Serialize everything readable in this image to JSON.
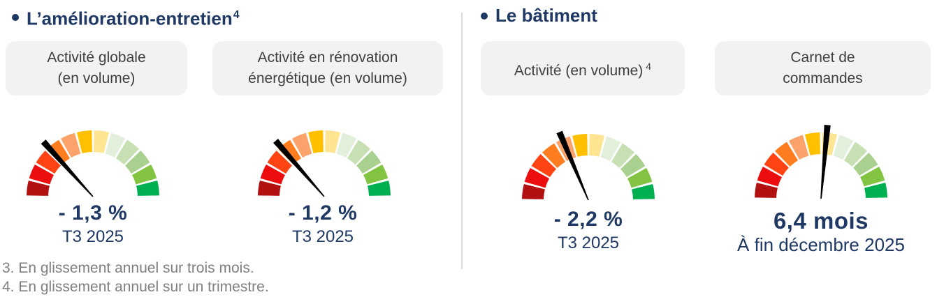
{
  "ui": {
    "section1": {
      "title": "L’amélioration-entretien",
      "title_sup": "4"
    },
    "section2": {
      "title": "Le bâtiment"
    },
    "boxes": [
      {
        "line1": "Activité globale",
        "line2": "(en volume)"
      },
      {
        "line1": "Activité en rénovation",
        "line2": "énergétique (en volume)"
      },
      {
        "line1": "Activité (en volume)",
        "sup": "4"
      },
      {
        "line1": "Carnet de",
        "line2": "commandes"
      }
    ],
    "footnotes": [
      "3. En glissement annuel sur trois mois.",
      "4. En glissement annuel sur un trimestre."
    ]
  },
  "colors": {
    "navy_text": "#1F3864",
    "box_background": "#F2F2F2",
    "footnote_gray": "#7F7F7F",
    "divider_gray": "#D9D9D9"
  },
  "chart_data": {
    "type": "gauge",
    "layout": {
      "arc_start_deg": 180,
      "arc_end_deg": 0,
      "segments": 12,
      "gap_deg": 2,
      "outer_radius": 95,
      "inner_radius": 64,
      "needle_length": 106,
      "needle_angle_reference": "degrees counterclockwise from east (3 o'clock)"
    },
    "segment_colors": [
      "#B21111",
      "#EC0E0E",
      "#FF4313",
      "#FF7D1E",
      "#FCA36B",
      "#FFC000",
      "#FFE492",
      "#E2EFDA",
      "#C6E0B4",
      "#A9D08E",
      "#82C341",
      "#00B050"
    ],
    "needle_color": "#000000",
    "gauges": [
      {
        "section": "L’amélioration-entretien",
        "label": "Activité globale (en volume)",
        "value": -1.3,
        "unit": "%",
        "value_text": "- 1,3 %",
        "period": "T3 2025",
        "needle_deg": 132
      },
      {
        "section": "L’amélioration-entretien",
        "label": "Activité en rénovation énergétique (en volume)",
        "value": -1.2,
        "unit": "%",
        "value_text": "- 1,2 %",
        "period": "T3 2025",
        "needle_deg": 131
      },
      {
        "section": "Le bâtiment",
        "label": "Activité (en volume) 4",
        "value": -2.2,
        "unit": "%",
        "value_text": "- 2,2 %",
        "period": "T3 2025",
        "needle_deg": 113
      },
      {
        "section": "Le bâtiment",
        "label": "Carnet de commandes",
        "value": 6.4,
        "unit": "mois",
        "value_text": "6,4 mois",
        "period": "À fin décembre 2025",
        "needle_deg": 85
      }
    ]
  }
}
